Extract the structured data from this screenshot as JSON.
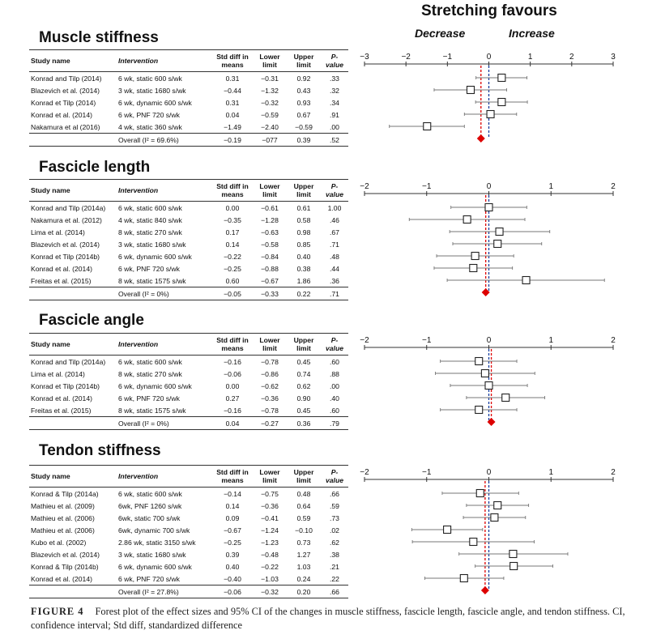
{
  "header": {
    "title": "Stretching favours",
    "decrease": "Decrease",
    "increase": "Increase"
  },
  "columns": {
    "study": "Study name",
    "intervention": "Intervention",
    "smd": "Std diff in means",
    "lower": "Lower limit",
    "upper": "Upper limit",
    "p": "P-value"
  },
  "colors": {
    "pooled": "#dd0000",
    "zero_line": "#1a3fa0",
    "marker": "#222222"
  },
  "panels": [
    {
      "title": "Muscle stiffness",
      "axis_ticks": [
        "−3",
        "−2",
        "−1",
        "0",
        "1",
        "2",
        "3"
      ],
      "axis_range": [
        -3,
        3
      ],
      "overall": {
        "label": "Overall (I² = 69.6%)",
        "smd": "−0.19",
        "lower": "−077",
        "upper": "0.39",
        "p": ".52"
      },
      "studies": [
        {
          "name": "Konrad and Tilp  (2014)",
          "intervention": "6 wk, static 600 s/wk",
          "smd": "0.31",
          "lower": "−0.31",
          "upper": "0.92",
          "p": ".33"
        },
        {
          "name": "Blazevich et al. (2014)",
          "intervention": "3 wk, static 1680 s/wk",
          "smd": "−0.44",
          "lower": "−1.32",
          "upper": "0.43",
          "p": ".32"
        },
        {
          "name": "Konrad et Tilp (2014)",
          "intervention": "6 wk, dynamic 600 s/wk",
          "smd": "0.31",
          "lower": "−0.32",
          "upper": "0.93",
          "p": ".34"
        },
        {
          "name": "Konrad et al. (2014)",
          "intervention": "6 wk, PNF 720 s/wk",
          "smd": "0.04",
          "lower": "−0.59",
          "upper": "0.67",
          "p": ".91"
        },
        {
          "name": "Nakamura et al (2016)",
          "intervention": "4 wk, static 360 s/wk",
          "smd": "−1.49",
          "lower": "−2.40",
          "upper": "−0.59",
          "p": ".00"
        }
      ]
    },
    {
      "title": "Fascicle length",
      "axis_ticks": [
        "−2",
        "−1",
        "0",
        "1",
        "2"
      ],
      "axis_range": [
        -2,
        2
      ],
      "overall": {
        "label": "Overall (I² = 0%)",
        "smd": "−0.05",
        "lower": "−0.33",
        "upper": "0.22",
        "p": ".71"
      },
      "studies": [
        {
          "name": "Konrad and Tilp  (2014a)",
          "intervention": "6 wk, static 600 s/wk",
          "smd": "0.00",
          "lower": "−0.61",
          "upper": "0.61",
          "p": "1.00"
        },
        {
          "name": "Nakamura et al. (2012)",
          "intervention": "4 wk, static 840 s/wk",
          "smd": "−0.35",
          "lower": "−1.28",
          "upper": "0.58",
          "p": ".46"
        },
        {
          "name": "Lima et al. (2014)",
          "intervention": "8 wk, static 270 s/wk",
          "smd": "0.17",
          "lower": "−0.63",
          "upper": "0.98",
          "p": ".67"
        },
        {
          "name": "Blazevich et al. (2014)",
          "intervention": "3 wk, static 1680 s/wk",
          "smd": "0.14",
          "lower": "−0.58",
          "upper": "0.85",
          "p": ".71"
        },
        {
          "name": "Konrad et Tilp (2014b)",
          "intervention": "6 wk, dynamic 600 s/wk",
          "smd": "−0.22",
          "lower": "−0.84",
          "upper": "0.40",
          "p": ".48"
        },
        {
          "name": "Konrad et al. (2014)",
          "intervention": "6 wk, PNF 720 s/wk",
          "smd": "−0.25",
          "lower": "−0.88",
          "upper": "0.38",
          "p": ".44"
        },
        {
          "name": "Freitas et al. (2015)",
          "intervention": "8 wk, static 1575 s/wk",
          "smd": "0.60",
          "lower": "−0.67",
          "upper": "1.86",
          "p": ".36"
        }
      ]
    },
    {
      "title": "Fascicle angle",
      "axis_ticks": [
        "−2",
        "−1",
        "0",
        "1",
        "2"
      ],
      "axis_range": [
        -2,
        2
      ],
      "overall": {
        "label": "Overall (I² = 0%)",
        "smd": "0.04",
        "lower": "−0.27",
        "upper": "0.36",
        "p": ".79"
      },
      "studies": [
        {
          "name": "Konrad and Tilp  (2014a)",
          "intervention": "6 wk, static 600 s/wk",
          "smd": "−0.16",
          "lower": "−0.78",
          "upper": "0.45",
          "p": ".60"
        },
        {
          "name": "Lima et al. (2014)",
          "intervention": "8 wk, static 270 s/wk",
          "smd": "−0.06",
          "lower": "−0.86",
          "upper": "0.74",
          "p": ".88"
        },
        {
          "name": "Konrad et Tilp (2014b)",
          "intervention": "6 wk, dynamic 600 s/wk",
          "smd": "0.00",
          "lower": "−0.62",
          "upper": "0.62",
          "p": ".00"
        },
        {
          "name": "Konrad et al. (2014)",
          "intervention": "6 wk, PNF 720 s/wk",
          "smd": "0.27",
          "lower": "−0.36",
          "upper": "0.90",
          "p": ".40"
        },
        {
          "name": "Freitas et al. (2015)",
          "intervention": "8 wk, static 1575 s/wk",
          "smd": "−0.16",
          "lower": "−0.78",
          "upper": "0.45",
          "p": ".60"
        }
      ]
    },
    {
      "title": "Tendon stiffness",
      "axis_ticks": [
        "−2",
        "−1",
        "0",
        "1",
        "2"
      ],
      "axis_range": [
        -2,
        2
      ],
      "overall": {
        "label": "Overall (I² = 27.8%)",
        "smd": "−0.06",
        "lower": "−0.32",
        "upper": "0.20",
        "p": ".66"
      },
      "studies": [
        {
          "name": "Konrad & Tilp  (2014a)",
          "intervention": "6 wk, static 600 s/wk",
          "smd": "−0.14",
          "lower": "−0.75",
          "upper": "0.48",
          "p": ".66"
        },
        {
          "name": "Mathieu et al. (2009)",
          "intervention": "6wk, PNF 1260 s/wk",
          "smd": "0.14",
          "lower": "−0.36",
          "upper": "0.64",
          "p": ".59"
        },
        {
          "name": "Mathieu et al. (2006)",
          "intervention": "6wk, static 700 s/wk",
          "smd": "0.09",
          "lower": "−0.41",
          "upper": "0.59",
          "p": ".73"
        },
        {
          "name": "Mathieu et al. (2006)",
          "intervention": "6wk, dynamic 700 s/wk",
          "smd": "−0.67",
          "lower": "−1.24",
          "upper": "−0.10",
          "p": ".02"
        },
        {
          "name": "Kubo et al. (2002)",
          "intervention": "2.86 wk, static 3150 s/wk",
          "smd": "−0.25",
          "lower": "−1.23",
          "upper": "0.73",
          "p": ".62"
        },
        {
          "name": "Blazevich et al. (2014)",
          "intervention": "3 wk, static 1680 s/wk",
          "smd": "0.39",
          "lower": "−0.48",
          "upper": "1.27",
          "p": ".38"
        },
        {
          "name": "Konrad & Tilp (2014b)",
          "intervention": "6 wk, dynamic 600 s/wk",
          "smd": "0.40",
          "lower": "−0.22",
          "upper": "1.03",
          "p": ".21"
        },
        {
          "name": "Konrad et al. (2014)",
          "intervention": "6 wk, PNF 720 s/wk",
          "smd": "−0.40",
          "lower": "−1.03",
          "upper": "0.24",
          "p": ".22"
        }
      ]
    }
  ],
  "caption": {
    "label": "FIGURE 4",
    "text": "Forest plot of the effect sizes and 95% CI of the changes in muscle stiffness, fascicle length, fascicle angle, and tendon stiffness. CI, confidence interval; Std diff, standardized difference"
  }
}
